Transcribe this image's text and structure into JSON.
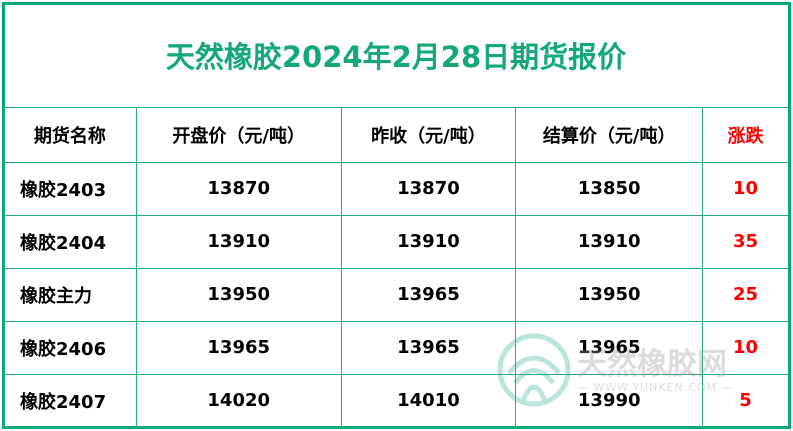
{
  "title": "天然橡胶2024年2月28日期货报价",
  "headers": [
    "期货名称",
    "开盘价（元/吨）",
    "昨收（元/吨）",
    "结算价（元/吨）",
    "涨跌"
  ],
  "rows": [
    {
      "name": "橡胶2403",
      "open": "13870",
      "prev_close": "13870",
      "settle": "13850",
      "change": "10"
    },
    {
      "name": "橡胶2404",
      "open": "13910",
      "prev_close": "13910",
      "settle": "13910",
      "change": "35"
    },
    {
      "name": "橡胶主力",
      "open": "13950",
      "prev_close": "13965",
      "settle": "13950",
      "change": "25"
    },
    {
      "name": "橡胶2406",
      "open": "13965",
      "prev_close": "13965",
      "settle": "13965",
      "change": "10"
    },
    {
      "name": "橡胶2407",
      "open": "14020",
      "prev_close": "14010",
      "settle": "13990",
      "change": "5"
    }
  ],
  "watermark": {
    "text": "天然橡胶网",
    "url": "— WWW.YUNKEN.COM —"
  },
  "colors": {
    "accent": "#00a77a",
    "change": "#ff0000"
  }
}
